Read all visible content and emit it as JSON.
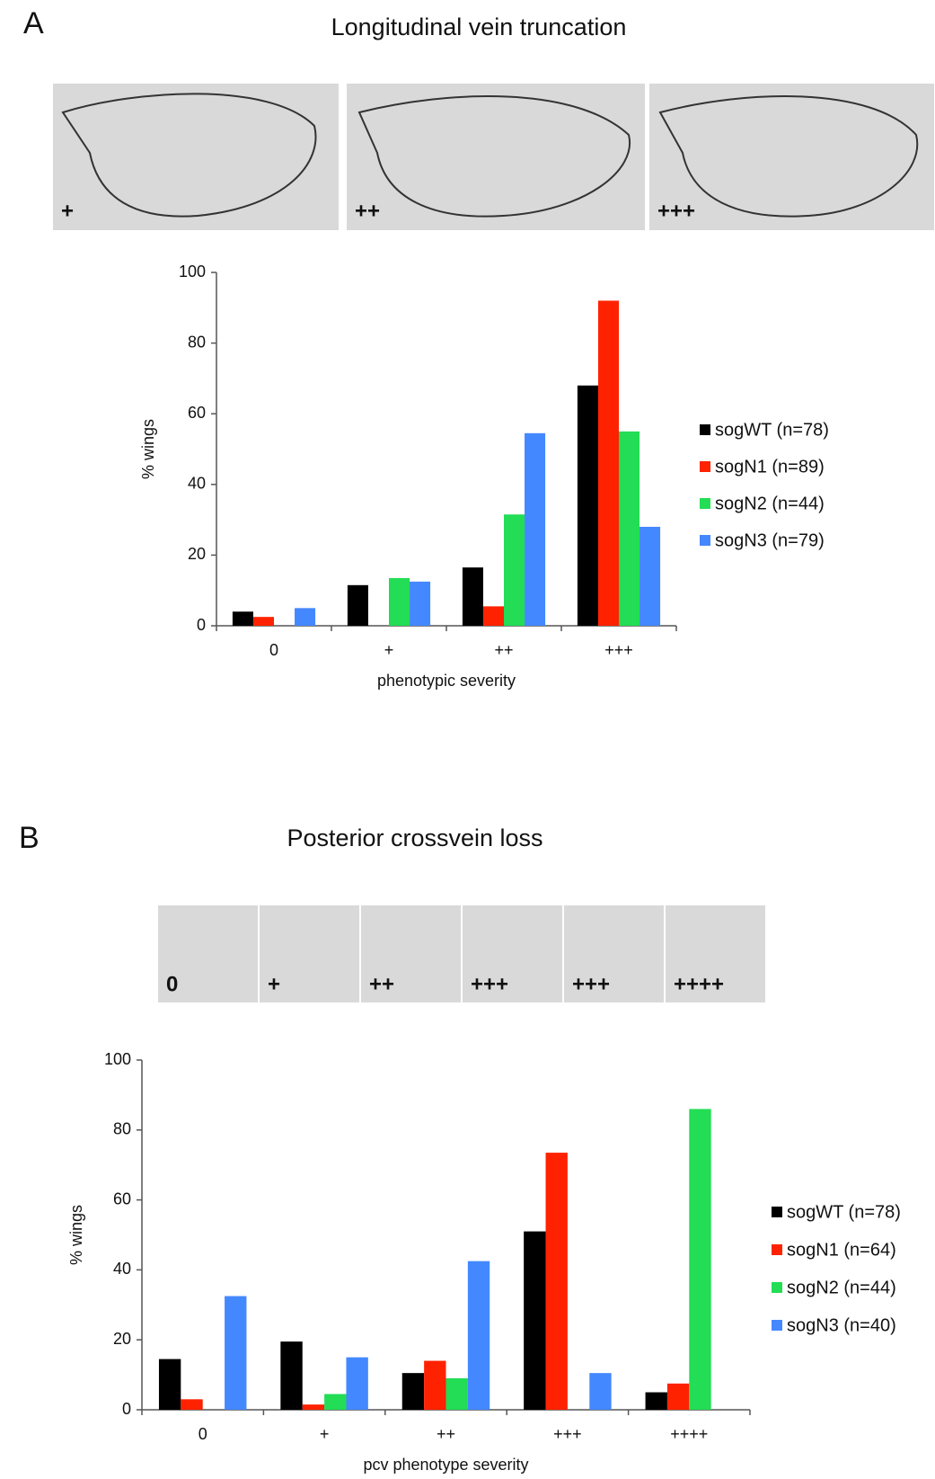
{
  "chart_data": [
    {
      "type": "bar",
      "panel": "A",
      "title": "Longitudinal vein truncation",
      "image_labels": [
        "+",
        "++",
        "+++"
      ],
      "categories": [
        "0",
        "+",
        "++",
        "+++"
      ],
      "series": [
        {
          "name": "sogWT (n=78)",
          "color": "#000000",
          "values": [
            4,
            11.5,
            16.5,
            68
          ]
        },
        {
          "name": "sogN1 (n=89)",
          "color": "#ff2200",
          "values": [
            2.5,
            0,
            5.5,
            92
          ]
        },
        {
          "name": "sogN2 (n=44)",
          "color": "#22dd55",
          "values": [
            0,
            13.5,
            31.5,
            55
          ]
        },
        {
          "name": "sogN3 (n=79)",
          "color": "#4488ff",
          "values": [
            5,
            12.5,
            54.5,
            28
          ]
        }
      ],
      "ylim": [
        0,
        100
      ],
      "yticks": [
        0,
        20,
        40,
        60,
        80,
        100
      ],
      "ylabel": "% wings",
      "xlabel": "phenotypic severity"
    },
    {
      "type": "bar",
      "panel": "B",
      "title": "Posterior crossvein loss",
      "image_labels": [
        "0",
        "+",
        "++",
        "+++",
        "+++",
        "++++"
      ],
      "categories": [
        "0",
        "+",
        "++",
        "+++",
        "++++"
      ],
      "series": [
        {
          "name": "sogWT (n=78)",
          "color": "#000000",
          "values": [
            14.5,
            19.5,
            10.5,
            51,
            5
          ]
        },
        {
          "name": "sogN1 (n=64)",
          "color": "#ff2200",
          "values": [
            3,
            1.5,
            14,
            73.5,
            7.5
          ]
        },
        {
          "name": "sogN2 (n=44)",
          "color": "#22dd55",
          "values": [
            0,
            4.5,
            9,
            0,
            86
          ]
        },
        {
          "name": "sogN3 (n=40)",
          "color": "#4488ff",
          "values": [
            32.5,
            15,
            42.5,
            10.5,
            0
          ]
        }
      ],
      "ylim": [
        0,
        100
      ],
      "yticks": [
        0,
        20,
        40,
        60,
        80,
        100
      ],
      "ylabel": "% wings",
      "xlabel": "pcv phenotype severity"
    }
  ]
}
